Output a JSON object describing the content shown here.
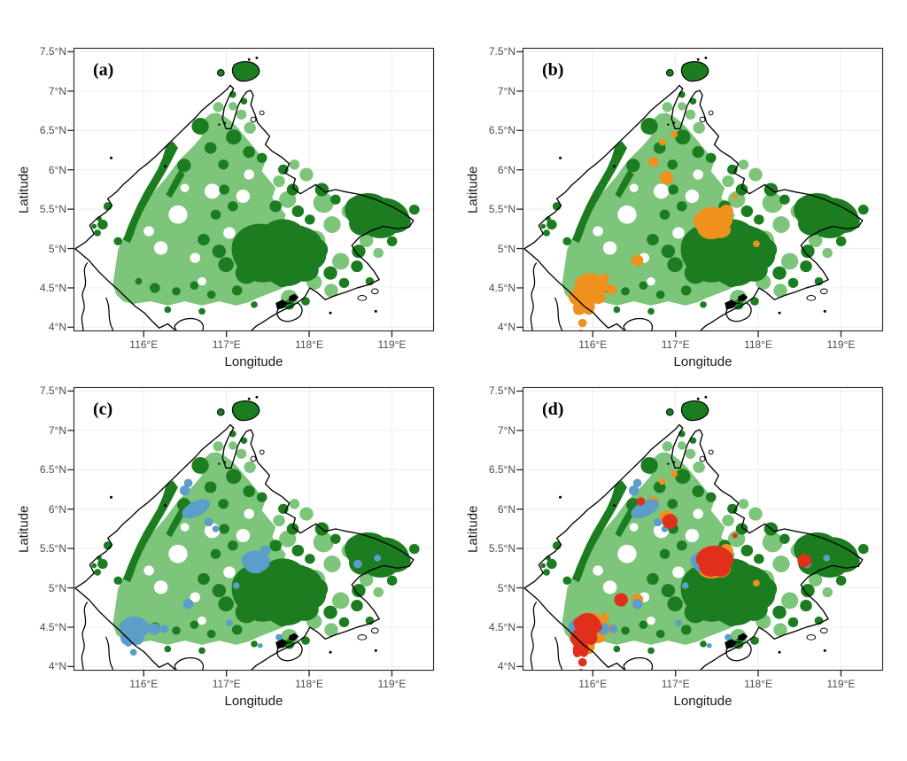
{
  "figure": {
    "type": "four-panel-map-figure",
    "region": "Sabah, Borneo",
    "axes": {
      "x_label": "Longitude",
      "y_label": "Latitude",
      "x_ticks": [
        "116°E",
        "117°E",
        "118°E",
        "119°E"
      ],
      "y_ticks": [
        "7.5°N",
        "7°N",
        "6.5°N",
        "6°N",
        "5.5°N",
        "5°N",
        "4.5°N",
        "4°N"
      ]
    },
    "panels": [
      {
        "id": "a",
        "label": "(a)",
        "overlays": []
      },
      {
        "id": "b",
        "label": "(b)",
        "overlays": [
          "orange"
        ]
      },
      {
        "id": "c",
        "label": "(c)",
        "overlays": [
          "blue"
        ]
      },
      {
        "id": "d",
        "label": "(d)",
        "overlays": [
          "orange",
          "blue",
          "red"
        ]
      }
    ],
    "colors": {
      "dark_green": "#1B7D1F",
      "light_green": "#7CC57B",
      "orange": "#F0911E",
      "blue": "#5B9EC9",
      "red": "#E0301C",
      "coastline": "#000000",
      "gridline": "#ECECEC",
      "tick_text": "#4D4D4D",
      "border": "#2A2A2A"
    }
  }
}
